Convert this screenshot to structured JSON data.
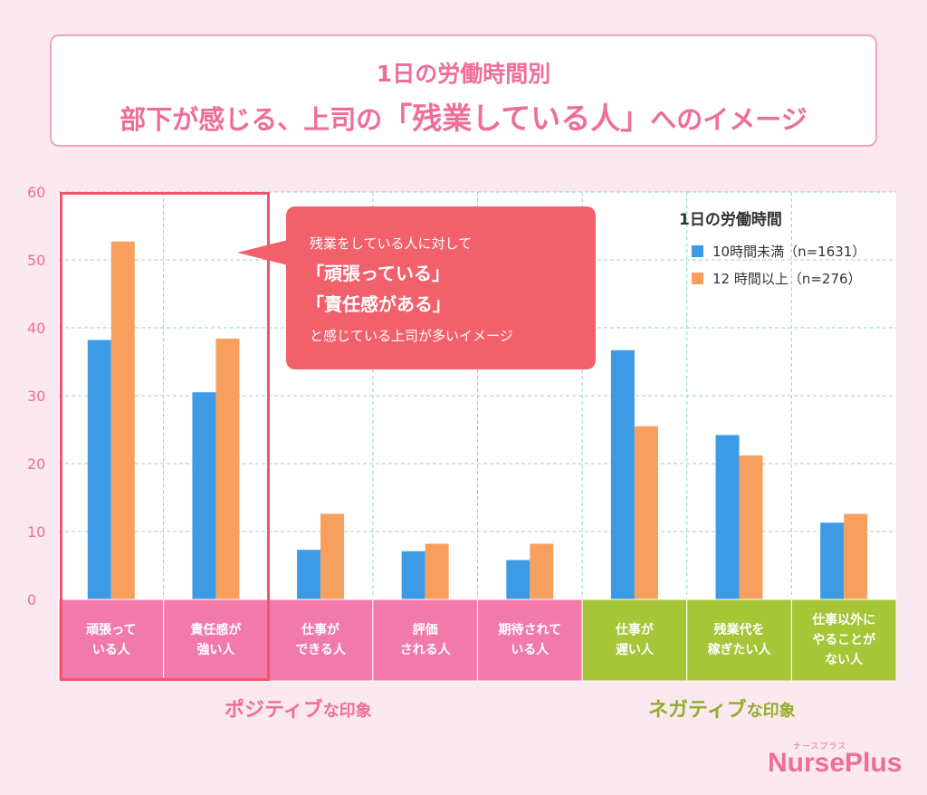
{
  "title": {
    "line1": "1日の労働時間別",
    "line2_a": "部下が感じる、上司の",
    "line2_b": "「残業している人」",
    "line2_c": "へのイメージ"
  },
  "callout": {
    "line1": "残業をしている人に対して",
    "line2": "「頑張っている」",
    "line3": "「責任感がある」",
    "line4": "と感じている上司が多いイメージ"
  },
  "legend": {
    "title": "1日の労働時間",
    "series1": "10時間未満（n=1631）",
    "series2": "12 時間以上（n=276）"
  },
  "groups": {
    "positive": "ポジティブ",
    "negative": "ネガティブ",
    "suffix": "な印象"
  },
  "xlabels": [
    [
      "頑張って",
      "いる人"
    ],
    [
      "責任感が",
      "強い人"
    ],
    [
      "仕事が",
      "できる人"
    ],
    [
      "評価",
      "される人"
    ],
    [
      "期待されて",
      "いる人"
    ],
    [
      "仕事が",
      "遅い人"
    ],
    [
      "残業代を",
      "稼ぎたい人"
    ],
    [
      "仕事以外に",
      "やることが",
      "ない人"
    ]
  ],
  "logo": {
    "main": "NursePlus",
    "sub": "ナースプラス"
  },
  "colors": {
    "blue": "#3d9be6",
    "orange": "#f7a05d",
    "pink": "#f27aab",
    "green": "#a6c537",
    "accent": "#ef6e97"
  },
  "chart_data": {
    "type": "bar",
    "categories": [
      "頑張っている人",
      "責任感が強い人",
      "仕事ができる人",
      "評価される人",
      "期待されている人",
      "仕事が遅い人",
      "残業代を稼ぎたい人",
      "仕事以外にやることがない人"
    ],
    "series": [
      {
        "name": "10時間未満（n=1631）",
        "values": [
          38.2,
          30.5,
          7.3,
          7.1,
          5.8,
          36.7,
          24.2,
          11.3
        ]
      },
      {
        "name": "12 時間以上（n=276）",
        "values": [
          52.7,
          38.4,
          12.6,
          8.2,
          8.2,
          25.5,
          21.2,
          12.6
        ]
      }
    ],
    "ylim": [
      0,
      60
    ],
    "yticks": [
      0,
      10,
      20,
      30,
      40,
      50,
      60
    ],
    "grid": true,
    "legend_position": "top-right"
  }
}
